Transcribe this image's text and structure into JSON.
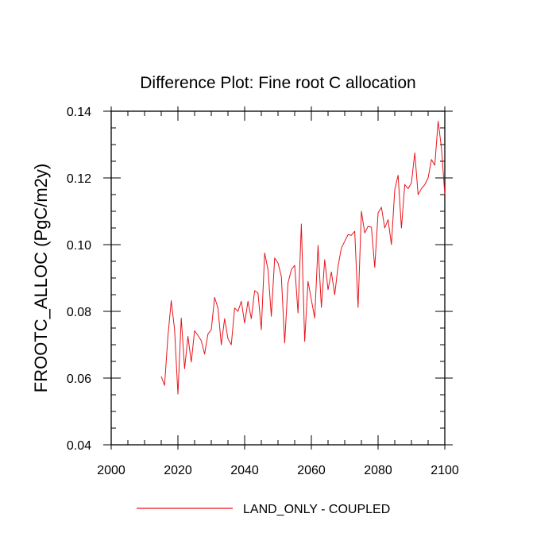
{
  "chart_data": {
    "type": "line",
    "title": "Difference Plot: Fine root C allocation",
    "xlabel": "",
    "ylabel": "FROOTC_ALLOC  (PgC/m2y)",
    "xlim": [
      2000,
      2100
    ],
    "ylim": [
      0.04,
      0.14
    ],
    "x_ticks": [
      2000,
      2020,
      2040,
      2060,
      2080,
      2100
    ],
    "x_tick_labels": [
      "2000",
      "2020",
      "2040",
      "2060",
      "2080",
      "2100"
    ],
    "y_ticks": [
      0.04,
      0.06,
      0.08,
      0.1,
      0.12,
      0.14
    ],
    "y_tick_labels": [
      "0.04",
      "0.06",
      "0.08",
      "0.10",
      "0.12",
      "0.14"
    ],
    "grid": false,
    "legend_position": "bottom-center",
    "series": [
      {
        "name": "LAND_ONLY - COUPLED",
        "color": "#e8141a",
        "x": [
          2015,
          2016,
          2017,
          2018,
          2019,
          2020,
          2021,
          2022,
          2023,
          2024,
          2025,
          2026,
          2027,
          2028,
          2029,
          2030,
          2031,
          2032,
          2033,
          2034,
          2035,
          2036,
          2037,
          2038,
          2039,
          2040,
          2041,
          2042,
          2043,
          2044,
          2045,
          2046,
          2047,
          2048,
          2049,
          2050,
          2051,
          2052,
          2053,
          2054,
          2055,
          2056,
          2057,
          2058,
          2059,
          2060,
          2061,
          2062,
          2063,
          2064,
          2065,
          2066,
          2067,
          2068,
          2069,
          2070,
          2071,
          2072,
          2073,
          2074,
          2075,
          2076,
          2077,
          2078,
          2079,
          2080,
          2081,
          2082,
          2083,
          2084,
          2085,
          2086,
          2087,
          2088,
          2089,
          2090,
          2091,
          2092,
          2093,
          2094,
          2095,
          2096,
          2097,
          2098,
          2099,
          2100
        ],
        "values": [
          0.0605,
          0.0578,
          0.0725,
          0.0832,
          0.0745,
          0.0552,
          0.078,
          0.0628,
          0.0725,
          0.0648,
          0.0742,
          0.0728,
          0.0712,
          0.0672,
          0.0732,
          0.0745,
          0.0842,
          0.081,
          0.07,
          0.0778,
          0.0718,
          0.07,
          0.081,
          0.08,
          0.083,
          0.0765,
          0.083,
          0.0778,
          0.0862,
          0.0855,
          0.0745,
          0.0975,
          0.0925,
          0.0785,
          0.096,
          0.0945,
          0.0905,
          0.0705,
          0.0885,
          0.0925,
          0.0938,
          0.0795,
          0.1062,
          0.071,
          0.089,
          0.0835,
          0.078,
          0.0998,
          0.0812,
          0.0955,
          0.0865,
          0.0918,
          0.085,
          0.0935,
          0.099,
          0.101,
          0.103,
          0.1028,
          0.104,
          0.0812,
          0.11,
          0.1035,
          0.1055,
          0.1052,
          0.0932,
          0.1095,
          0.1112,
          0.105,
          0.1075,
          0.1,
          0.1165,
          0.1208,
          0.105,
          0.118,
          0.1168,
          0.1185,
          0.1275,
          0.115,
          0.1168,
          0.118,
          0.12,
          0.1255,
          0.1238,
          0.137,
          0.129,
          0.115
        ]
      }
    ]
  }
}
